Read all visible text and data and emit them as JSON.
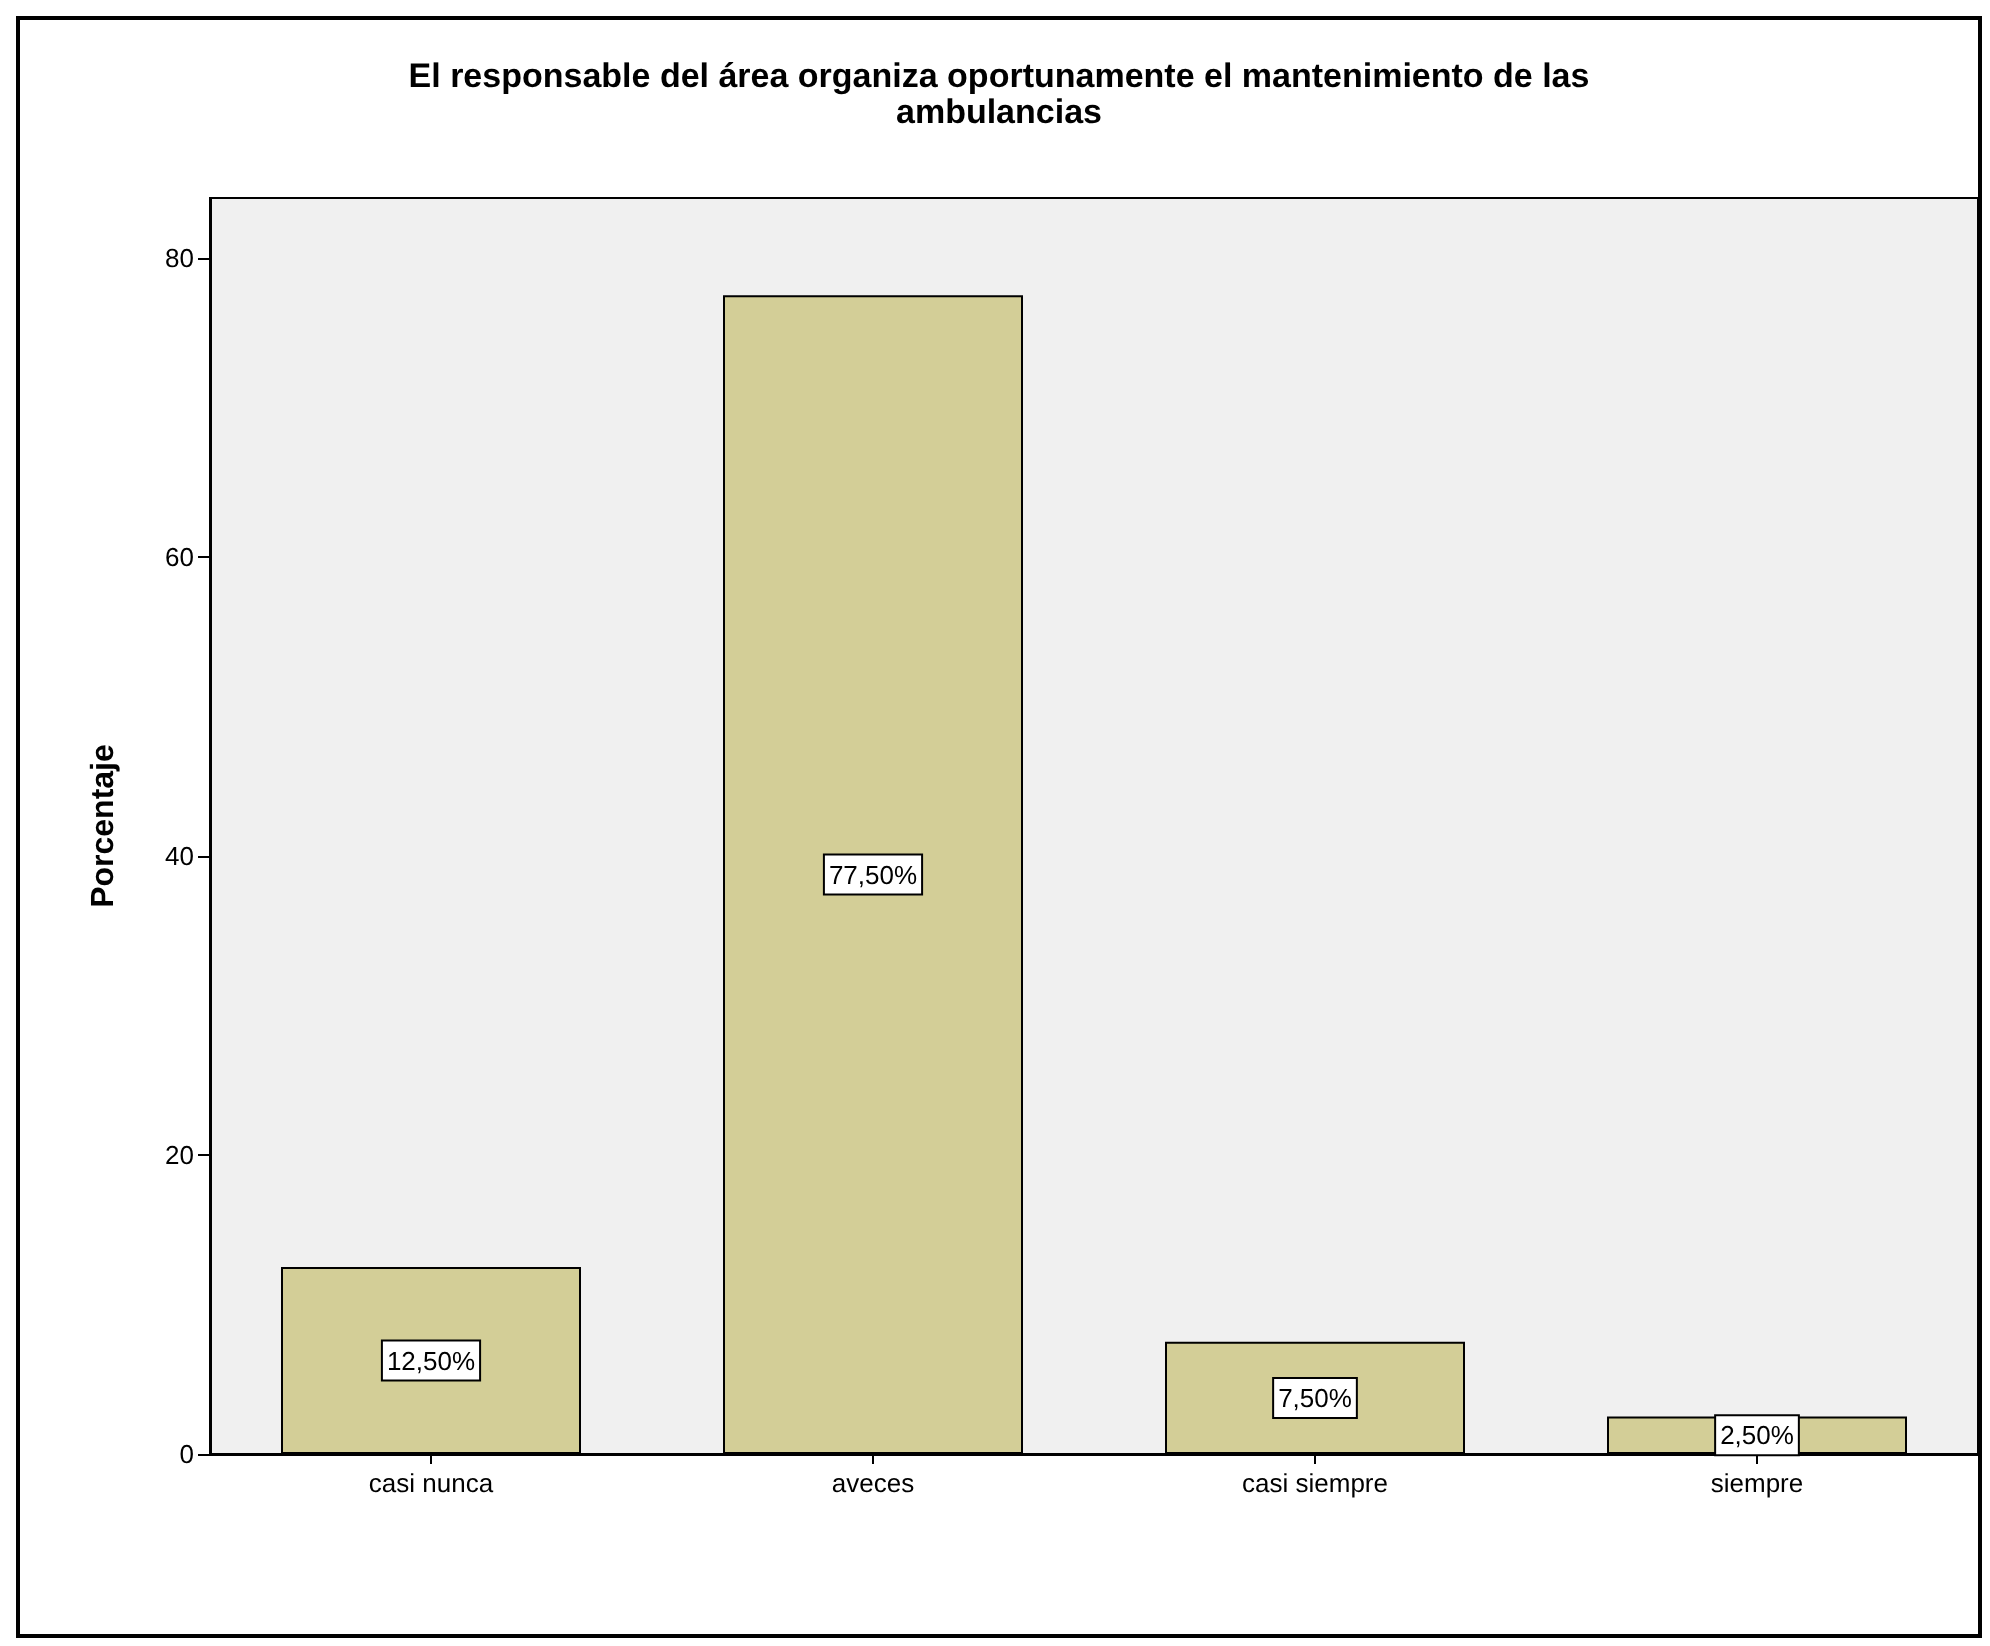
{
  "chart_data": {
    "type": "bar",
    "title": "El responsable del área organiza oportunamente el mantenimiento de las\nambulancias",
    "ylabel": "Porcentaje",
    "categories": [
      "casi nunca",
      "aveces",
      "casi siempre",
      "siempre"
    ],
    "values": [
      12.5,
      77.5,
      7.5,
      2.5
    ],
    "value_labels": [
      "12,50%",
      "77,50%",
      "7,50%",
      "2,50%"
    ],
    "color": "#d3ce97",
    "ylim": [
      0,
      84
    ],
    "yticks": [
      0,
      20,
      40,
      60,
      80
    ],
    "grid": false
  }
}
